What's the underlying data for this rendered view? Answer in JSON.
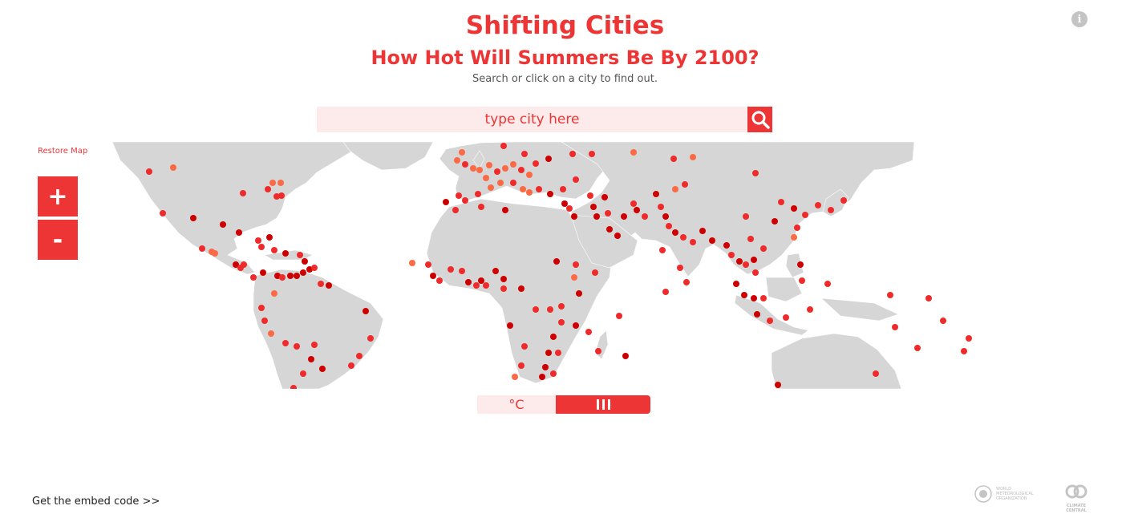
{
  "header": {
    "title": "Shifting Cities",
    "subtitle": "How Hot Will Summers Be By 2100?",
    "instructions": "Search or click on a city to find out."
  },
  "info_icon": {
    "glyph": "i",
    "icon": "info-icon"
  },
  "search": {
    "placeholder": "type city here",
    "value": "",
    "icon": "search-icon"
  },
  "map_controls": {
    "restore_label": "Restore Map",
    "zoom_in_label": "+",
    "zoom_out_label": "-"
  },
  "unit_toggle": {
    "celsius_label": "°C",
    "bars_icon": "bars-icon"
  },
  "footer": {
    "embed_label": "Get the embed code >>",
    "logos": [
      {
        "name": "WMO",
        "text": "WORLD METEOROLOGICAL ORGANIZATION"
      },
      {
        "name": "Climate Central",
        "text": "CLIMATE CENTRAL"
      }
    ]
  },
  "colors": {
    "accent": "#ee3535",
    "land": "#d6d6d6",
    "city_dark": "#cc0000",
    "city_mid": "#ee2b2b",
    "city_light": "#f96a45",
    "search_bg": "#fcebea"
  }
}
